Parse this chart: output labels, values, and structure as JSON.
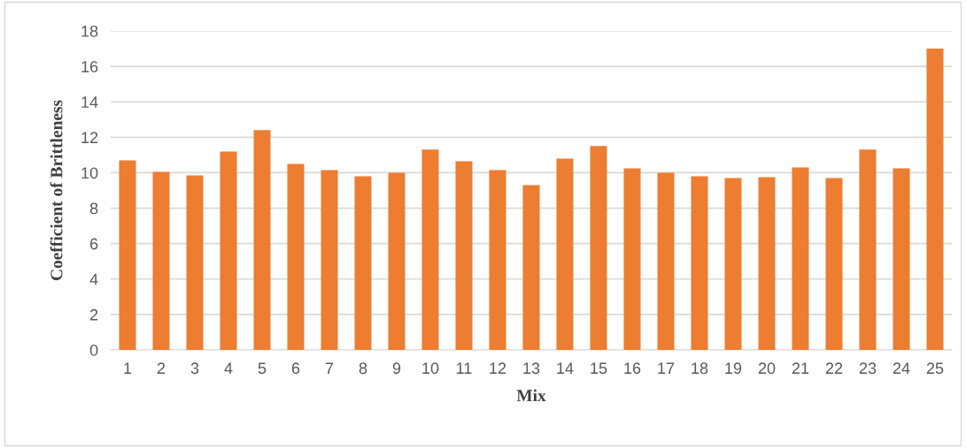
{
  "chart_data": {
    "type": "bar",
    "xlabel": "Mix",
    "ylabel": "Coefficient of Brittleness",
    "categories": [
      "1",
      "2",
      "3",
      "4",
      "5",
      "6",
      "7",
      "8",
      "9",
      "10",
      "11",
      "12",
      "13",
      "14",
      "15",
      "16",
      "17",
      "18",
      "19",
      "20",
      "21",
      "22",
      "23",
      "24",
      "25"
    ],
    "values": [
      10.7,
      10.05,
      9.85,
      11.2,
      12.4,
      10.5,
      10.15,
      9.8,
      10.0,
      11.3,
      10.65,
      10.15,
      9.3,
      10.8,
      11.5,
      10.25,
      10.0,
      9.8,
      9.7,
      9.75,
      10.3,
      9.7,
      11.3,
      10.25,
      17.0
    ],
    "color": "#ed7d31",
    "ylim": [
      0,
      18
    ],
    "yticks": [
      0,
      2,
      4,
      6,
      8,
      10,
      12,
      14,
      16,
      18
    ],
    "grid": "y",
    "legend": false
  }
}
